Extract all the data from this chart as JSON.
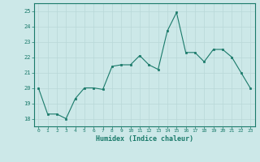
{
  "x": [
    0,
    1,
    2,
    3,
    4,
    5,
    6,
    7,
    8,
    9,
    10,
    11,
    12,
    13,
    14,
    15,
    16,
    17,
    18,
    19,
    20,
    21,
    22,
    23
  ],
  "y": [
    20.0,
    18.3,
    18.3,
    18.0,
    19.3,
    20.0,
    20.0,
    19.9,
    21.4,
    21.5,
    21.5,
    22.1,
    21.5,
    21.2,
    23.7,
    24.9,
    22.3,
    22.3,
    21.7,
    22.5,
    22.5,
    22.0,
    21.0,
    20.0
  ],
  "xlim": [
    -0.5,
    23.5
  ],
  "ylim": [
    17.5,
    25.5
  ],
  "yticks": [
    18,
    19,
    20,
    21,
    22,
    23,
    24,
    25
  ],
  "xticks": [
    0,
    1,
    2,
    3,
    4,
    5,
    6,
    7,
    8,
    9,
    10,
    11,
    12,
    13,
    14,
    15,
    16,
    17,
    18,
    19,
    20,
    21,
    22,
    23
  ],
  "xlabel": "Humidex (Indice chaleur)",
  "line_color": "#1a7a6a",
  "marker_color": "#1a7a6a",
  "bg_color": "#cce8e8",
  "grid_color": "#b8d8d8",
  "xlabel_color": "#1a7a6a",
  "tick_color": "#1a7a6a",
  "spine_color": "#1a7a6a"
}
